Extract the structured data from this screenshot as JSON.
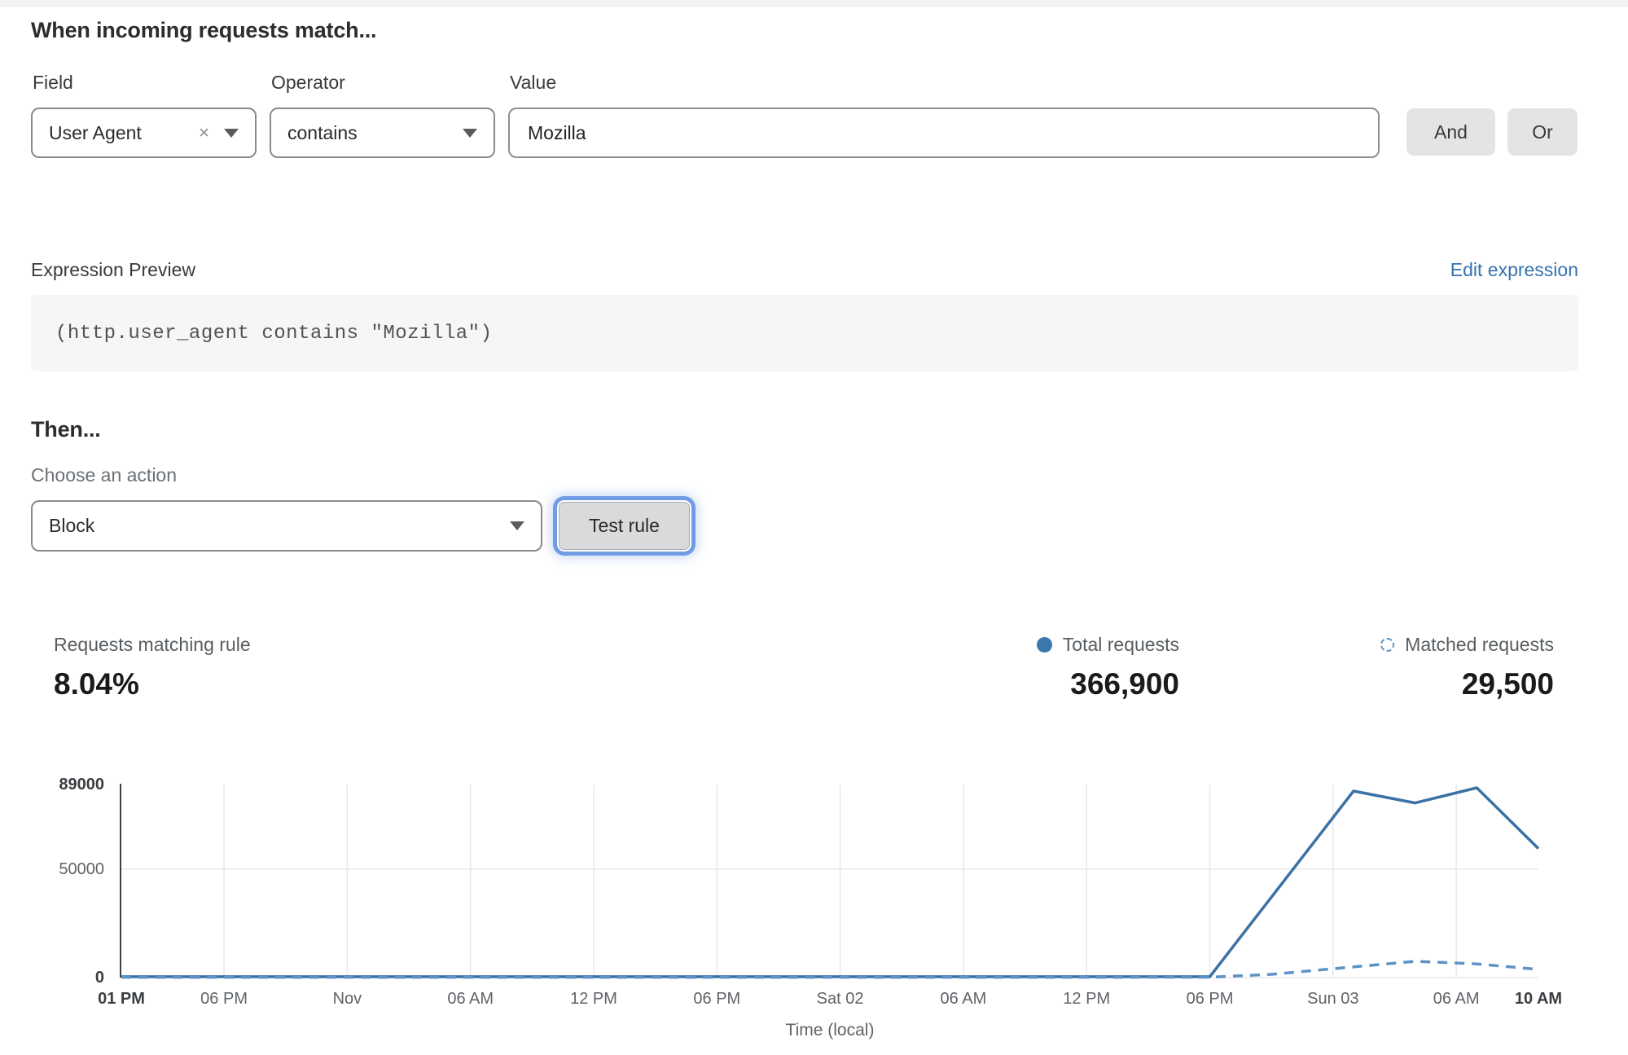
{
  "header": {
    "title": "When incoming requests match..."
  },
  "rule_builder": {
    "field": {
      "label": "Field",
      "value": "User Agent"
    },
    "operator": {
      "label": "Operator",
      "value": "contains"
    },
    "value": {
      "label": "Value",
      "value": "Mozilla"
    },
    "and_label": "And",
    "or_label": "Or",
    "clear_icon": "×"
  },
  "expression": {
    "label": "Expression Preview",
    "edit_link": "Edit expression",
    "code": "(http.user_agent contains \"Mozilla\")"
  },
  "action": {
    "title": "Then...",
    "choose_label": "Choose an action",
    "value": "Block",
    "test_button": "Test rule"
  },
  "stats": {
    "matching": {
      "label": "Requests matching rule",
      "value": "8.04%"
    },
    "total": {
      "label": "Total requests",
      "value": "366,900"
    },
    "matched": {
      "label": "Matched requests",
      "value": "29,500"
    }
  },
  "chart_data": {
    "type": "line",
    "xlabel": "Time (local)",
    "ylim": [
      0,
      89000
    ],
    "x_hours_total": 69,
    "grid": true,
    "yticks": [
      {
        "value": 0,
        "label": "0",
        "bold": true
      },
      {
        "value": 50000,
        "label": "50000",
        "bold": false
      },
      {
        "value": 89000,
        "label": "89000",
        "bold": true
      }
    ],
    "xticks": [
      {
        "h": 0,
        "label": "01 PM",
        "bold": true
      },
      {
        "h": 5,
        "label": "06 PM",
        "bold": false
      },
      {
        "h": 11,
        "label": "Nov",
        "bold": false
      },
      {
        "h": 17,
        "label": "06 AM",
        "bold": false
      },
      {
        "h": 23,
        "label": "12 PM",
        "bold": false
      },
      {
        "h": 29,
        "label": "06 PM",
        "bold": false
      },
      {
        "h": 35,
        "label": "Sat 02",
        "bold": false
      },
      {
        "h": 41,
        "label": "06 AM",
        "bold": false
      },
      {
        "h": 47,
        "label": "12 PM",
        "bold": false
      },
      {
        "h": 53,
        "label": "06 PM",
        "bold": false
      },
      {
        "h": 59,
        "label": "Sun 03",
        "bold": false
      },
      {
        "h": 65,
        "label": "06 AM",
        "bold": false
      },
      {
        "h": 69,
        "label": "10 AM",
        "bold": true
      }
    ],
    "series": [
      {
        "name": "Total requests",
        "style": "solid",
        "color": "#3b72a5",
        "points": [
          [
            0,
            400
          ],
          [
            5,
            400
          ],
          [
            11,
            400
          ],
          [
            17,
            400
          ],
          [
            23,
            400
          ],
          [
            29,
            400
          ],
          [
            35,
            400
          ],
          [
            41,
            400
          ],
          [
            47,
            400
          ],
          [
            53,
            400
          ],
          [
            60,
            86000
          ],
          [
            63,
            80500
          ],
          [
            66,
            87500
          ],
          [
            69,
            59500
          ]
        ]
      },
      {
        "name": "Matched requests",
        "style": "dashed",
        "color": "#5d92c7",
        "points": [
          [
            0,
            150
          ],
          [
            5,
            150
          ],
          [
            11,
            150
          ],
          [
            17,
            150
          ],
          [
            23,
            150
          ],
          [
            29,
            150
          ],
          [
            35,
            150
          ],
          [
            41,
            150
          ],
          [
            47,
            150
          ],
          [
            53,
            200
          ],
          [
            56,
            1500
          ],
          [
            59,
            4100
          ],
          [
            63,
            7500
          ],
          [
            66,
            6300
          ],
          [
            69,
            3800
          ]
        ]
      }
    ]
  }
}
